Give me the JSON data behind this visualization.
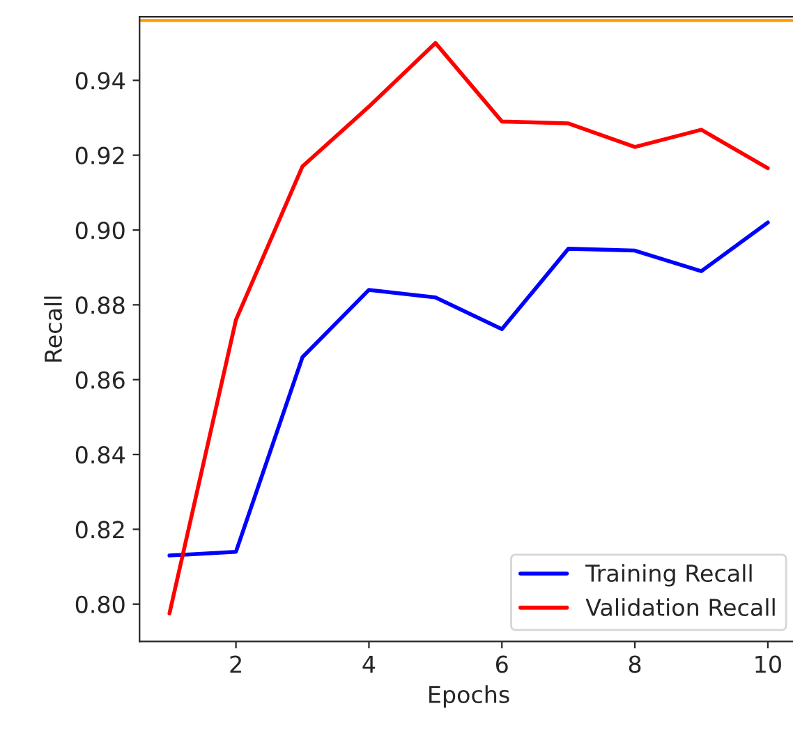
{
  "chart_data": {
    "type": "line",
    "xlabel": "Epochs",
    "ylabel": "Recall",
    "x": [
      1,
      2,
      3,
      4,
      5,
      6,
      7,
      8,
      9,
      10
    ],
    "series": [
      {
        "name": "Training Recall",
        "color": "#0000ff",
        "values": [
          0.813,
          0.814,
          0.866,
          0.884,
          0.882,
          0.8735,
          0.895,
          0.8945,
          0.889,
          0.902
        ]
      },
      {
        "name": "Validation Recall",
        "color": "#ff0000",
        "values": [
          0.7975,
          0.876,
          0.917,
          0.933,
          0.95,
          0.929,
          0.9285,
          0.9222,
          0.9268,
          0.9165
        ]
      }
    ],
    "xlim": [
      0.55,
      10.45
    ],
    "ylim": [
      0.79,
      0.957
    ],
    "xticks": [
      2,
      4,
      6,
      8,
      10
    ],
    "yticks": [
      {
        "value": 0.8,
        "label": "0.80"
      },
      0.82,
      0.84,
      0.86,
      0.88,
      {
        "value": 0.9,
        "label": "0.90"
      },
      0.92,
      0.94
    ],
    "ref_lines": [
      {
        "axis": "y",
        "value": 0.956,
        "color": "#ff9900"
      }
    ],
    "legend": "bottom right",
    "grid": false
  }
}
